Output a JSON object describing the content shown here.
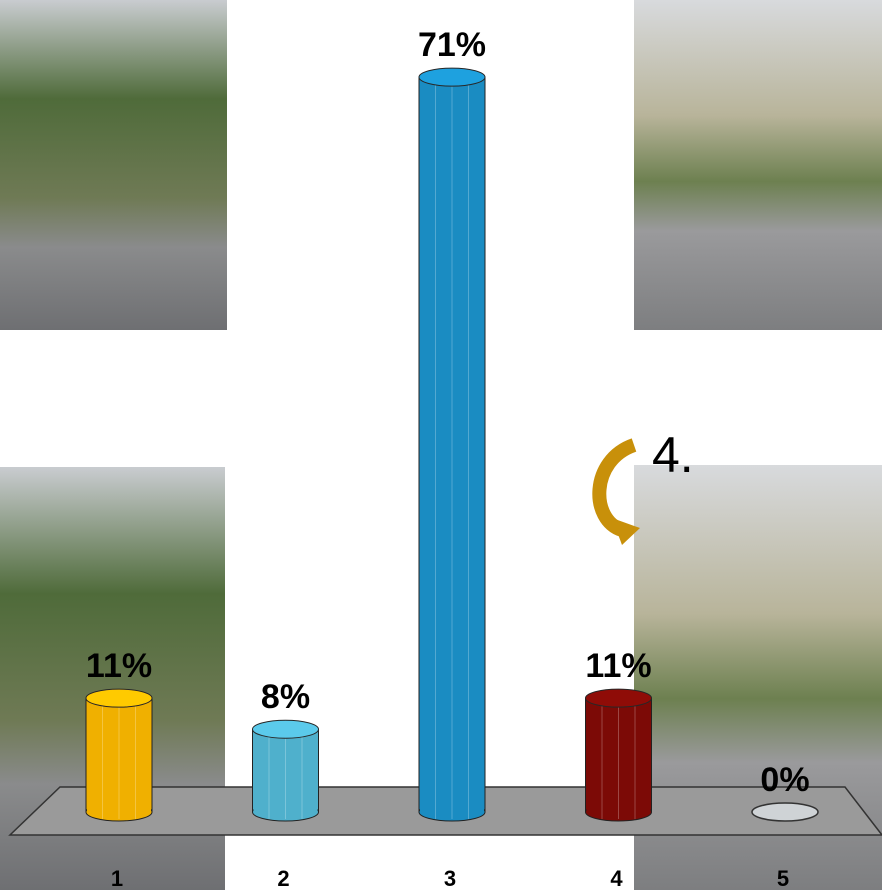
{
  "chart_data": {
    "type": "bar",
    "categories": [
      "1",
      "2",
      "3",
      "4",
      "5"
    ],
    "values": [
      11,
      8,
      71,
      11,
      0
    ],
    "value_labels": [
      "11%",
      "8%",
      "71%",
      "11%",
      "0%"
    ],
    "colors": [
      "#f0b000",
      "#4fb0cc",
      "#1a8cc2",
      "#7c0a06",
      "#cfd3d6"
    ],
    "annotation": "4."
  }
}
